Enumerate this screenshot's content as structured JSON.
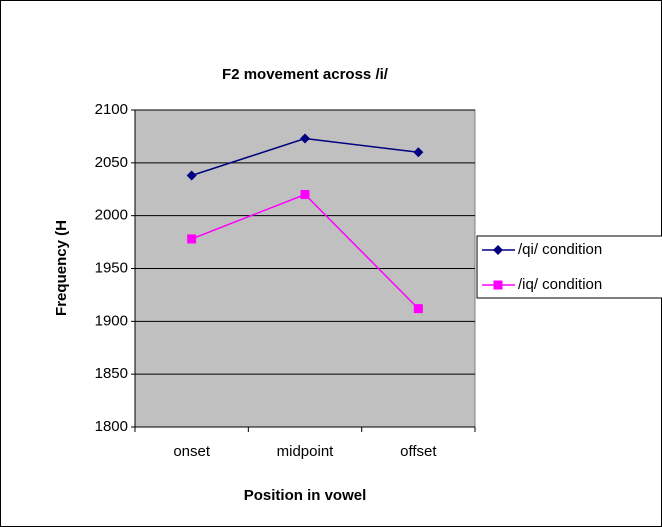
{
  "chart_data": {
    "type": "line",
    "title": "F2 movement across /i/",
    "x_label": "Position in vowel",
    "y_label": "Frequency (H",
    "categories": [
      "onset",
      "midpoint",
      "offset"
    ],
    "series": [
      {
        "name": "/qi/ condition",
        "color": "#000080",
        "marker": "diamond",
        "values": [
          2038,
          2073,
          2060
        ]
      },
      {
        "name": "/iq/ condition",
        "color": "#ff00ff",
        "marker": "square",
        "values": [
          1978,
          2020,
          1912
        ]
      }
    ],
    "ylim": [
      1800,
      2100
    ],
    "yticks": [
      1800,
      1850,
      1900,
      1950,
      2000,
      2050,
      2100
    ],
    "grid": true,
    "legend": "right",
    "plot_background": "#c0c0c0"
  }
}
